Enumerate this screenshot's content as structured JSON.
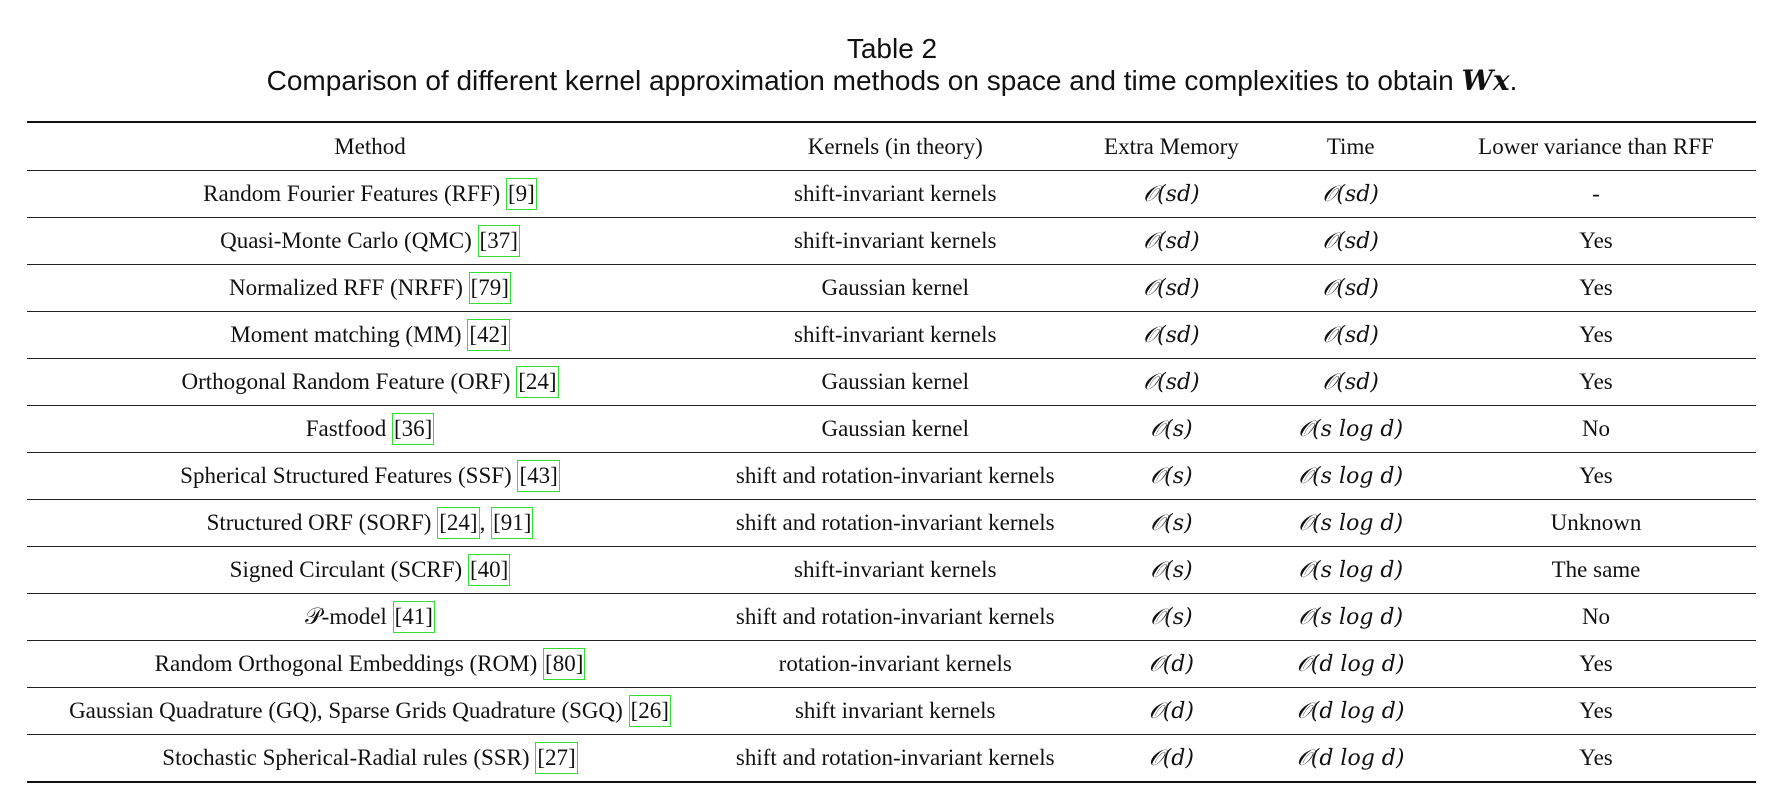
{
  "caption": {
    "title": "Table 2",
    "description": "Comparison of different kernel approximation methods on space and time complexities to obtain ",
    "math": "Wx",
    "period": "."
  },
  "table": {
    "headers": [
      "Method",
      "Kernels (in theory)",
      "Extra Memory",
      "Time",
      "Lower variance than RFF"
    ],
    "rows": [
      {
        "method": "Random Fourier Features (RFF) ",
        "cites": [
          "9"
        ],
        "kernels": "shift-invariant kernels",
        "memory": "𝒪(sd)",
        "time": "𝒪(sd)",
        "variance": "-"
      },
      {
        "method": "Quasi-Monte Carlo (QMC) ",
        "cites": [
          "37"
        ],
        "kernels": "shift-invariant kernels",
        "memory": "𝒪(sd)",
        "time": "𝒪(sd)",
        "variance": "Yes"
      },
      {
        "method": "Normalized RFF (NRFF) ",
        "cites": [
          "79"
        ],
        "kernels": "Gaussian kernel",
        "memory": "𝒪(sd)",
        "time": "𝒪(sd)",
        "variance": "Yes"
      },
      {
        "method": "Moment matching (MM) ",
        "cites": [
          "42"
        ],
        "kernels": "shift-invariant kernels",
        "memory": "𝒪(sd)",
        "time": "𝒪(sd)",
        "variance": "Yes"
      },
      {
        "method": "Orthogonal Random Feature (ORF) ",
        "cites": [
          "24"
        ],
        "kernels": "Gaussian kernel",
        "memory": "𝒪(sd)",
        "time": "𝒪(sd)",
        "variance": "Yes"
      },
      {
        "method": "Fastfood ",
        "cites": [
          "36"
        ],
        "kernels": "Gaussian kernel",
        "memory": "𝒪(s)",
        "time": "𝒪(s log d)",
        "variance": "No"
      },
      {
        "method": "Spherical Structured Features (SSF) ",
        "cites": [
          "43"
        ],
        "kernels": "shift and rotation-invariant kernels",
        "memory": "𝒪(s)",
        "time": "𝒪(s log d)",
        "variance": "Yes"
      },
      {
        "method": "Structured ORF (SORF) ",
        "cites": [
          "24",
          "91"
        ],
        "kernels": "shift and rotation-invariant kernels",
        "memory": "𝒪(s)",
        "time": "𝒪(s log d)",
        "variance": "Unknown"
      },
      {
        "method": "Signed Circulant (SCRF) ",
        "cites": [
          "40"
        ],
        "kernels": "shift-invariant kernels",
        "memory": "𝒪(s)",
        "time": "𝒪(s log d)",
        "variance": "The same"
      },
      {
        "method": "𝒫-model ",
        "cites": [
          "41"
        ],
        "kernels": "shift and rotation-invariant kernels",
        "memory": "𝒪(s)",
        "time": "𝒪(s log d)",
        "variance": "No"
      },
      {
        "method": "Random Orthogonal Embeddings (ROM) ",
        "cites": [
          "80"
        ],
        "kernels": "rotation-invariant kernels",
        "memory": "𝒪(d)",
        "time": "𝒪(d log d)",
        "variance": "Yes"
      },
      {
        "method": "Gaussian Quadrature (GQ), Sparse Grids Quadrature (SGQ) ",
        "cites": [
          "26"
        ],
        "kernels": "shift invariant kernels",
        "memory": "𝒪(d)",
        "time": "𝒪(d log d)",
        "variance": "Yes"
      },
      {
        "method": "Stochastic Spherical-Radial rules (SSR) ",
        "cites": [
          "27"
        ],
        "kernels": "shift and rotation-invariant kernels",
        "memory": "𝒪(d)",
        "time": "𝒪(d log d)",
        "variance": "Yes"
      }
    ]
  }
}
